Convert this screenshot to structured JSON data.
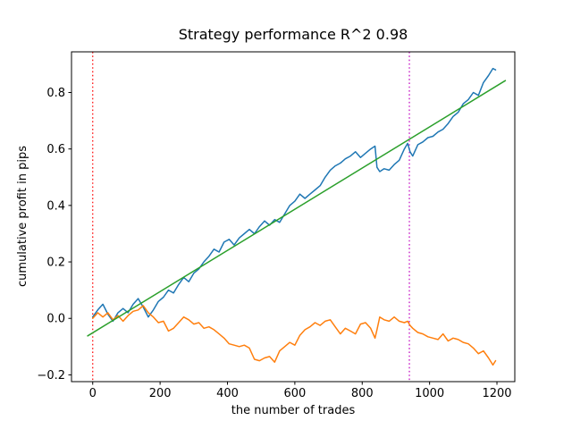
{
  "figure": {
    "background": "#ffffff",
    "spine_color": "#000000"
  },
  "chart_data": {
    "type": "line",
    "title": "Strategy performance R^2 0.98",
    "xlabel": "the number of trades",
    "ylabel": "cumulative profit in pips",
    "xlim": [
      -63,
      1253
    ],
    "ylim": [
      -0.224,
      0.944
    ],
    "xticks": [
      0,
      200,
      400,
      600,
      800,
      1000,
      1200
    ],
    "yticks": [
      -0.2,
      0.0,
      0.2,
      0.4,
      0.6,
      0.8
    ],
    "grid": false,
    "legend": null,
    "series": [
      {
        "name": "cumulative-profit-strategy",
        "color": "#1f77b4",
        "x": [
          0,
          15,
          30,
          45,
          60,
          75,
          90,
          105,
          120,
          135,
          150,
          165,
          180,
          195,
          210,
          225,
          240,
          255,
          270,
          285,
          300,
          315,
          330,
          345,
          360,
          375,
          390,
          405,
          420,
          435,
          450,
          465,
          480,
          495,
          510,
          525,
          540,
          555,
          570,
          585,
          600,
          615,
          630,
          645,
          660,
          675,
          690,
          705,
          720,
          735,
          750,
          765,
          780,
          795,
          810,
          825,
          838,
          844,
          852,
          865,
          880,
          895,
          910,
          925,
          935,
          942,
          950,
          965,
          980,
          995,
          1010,
          1025,
          1040,
          1055,
          1070,
          1085,
          1100,
          1115,
          1130,
          1145,
          1160,
          1175,
          1188,
          1196
        ],
        "y": [
          0.005,
          0.03,
          0.05,
          0.015,
          -0.01,
          0.02,
          0.035,
          0.02,
          0.05,
          0.07,
          0.04,
          0.005,
          0.03,
          0.06,
          0.075,
          0.1,
          0.09,
          0.12,
          0.145,
          0.13,
          0.16,
          0.175,
          0.2,
          0.22,
          0.245,
          0.235,
          0.27,
          0.28,
          0.26,
          0.285,
          0.3,
          0.315,
          0.3,
          0.325,
          0.345,
          0.33,
          0.35,
          0.34,
          0.37,
          0.4,
          0.415,
          0.44,
          0.425,
          0.44,
          0.455,
          0.47,
          0.5,
          0.525,
          0.54,
          0.55,
          0.565,
          0.575,
          0.59,
          0.57,
          0.585,
          0.6,
          0.61,
          0.535,
          0.52,
          0.53,
          0.525,
          0.545,
          0.56,
          0.6,
          0.62,
          0.59,
          0.575,
          0.615,
          0.625,
          0.64,
          0.645,
          0.66,
          0.67,
          0.69,
          0.715,
          0.73,
          0.76,
          0.775,
          0.8,
          0.79,
          0.835,
          0.86,
          0.885,
          0.88
        ]
      },
      {
        "name": "cumulative-profit-benchmark",
        "color": "#ff7f0e",
        "x": [
          0,
          15,
          30,
          45,
          60,
          75,
          90,
          105,
          120,
          135,
          150,
          165,
          180,
          195,
          210,
          225,
          240,
          255,
          270,
          285,
          300,
          315,
          330,
          345,
          360,
          375,
          390,
          405,
          420,
          435,
          450,
          465,
          480,
          495,
          510,
          525,
          540,
          555,
          570,
          585,
          600,
          615,
          630,
          645,
          660,
          675,
          690,
          705,
          720,
          735,
          750,
          765,
          780,
          795,
          810,
          825,
          838,
          844,
          852,
          865,
          880,
          895,
          910,
          925,
          935,
          942,
          950,
          965,
          980,
          995,
          1010,
          1025,
          1040,
          1055,
          1070,
          1085,
          1100,
          1115,
          1130,
          1145,
          1160,
          1175,
          1188,
          1196
        ],
        "y": [
          0.0,
          0.02,
          0.005,
          0.02,
          -0.005,
          0.01,
          -0.01,
          0.01,
          0.025,
          0.03,
          0.045,
          0.02,
          0.005,
          -0.015,
          -0.01,
          -0.045,
          -0.035,
          -0.015,
          0.005,
          -0.005,
          -0.02,
          -0.015,
          -0.035,
          -0.03,
          -0.04,
          -0.055,
          -0.07,
          -0.09,
          -0.095,
          -0.1,
          -0.095,
          -0.105,
          -0.145,
          -0.15,
          -0.14,
          -0.135,
          -0.155,
          -0.115,
          -0.1,
          -0.085,
          -0.095,
          -0.06,
          -0.04,
          -0.03,
          -0.015,
          -0.025,
          -0.01,
          -0.005,
          -0.03,
          -0.055,
          -0.035,
          -0.045,
          -0.055,
          -0.02,
          -0.015,
          -0.035,
          -0.07,
          -0.04,
          0.005,
          -0.005,
          -0.01,
          0.005,
          -0.01,
          -0.015,
          -0.01,
          -0.025,
          -0.035,
          -0.05,
          -0.055,
          -0.065,
          -0.07,
          -0.075,
          -0.055,
          -0.08,
          -0.07,
          -0.075,
          -0.085,
          -0.09,
          -0.105,
          -0.125,
          -0.115,
          -0.14,
          -0.165,
          -0.15
        ]
      },
      {
        "name": "linear-regression-fit",
        "color": "#2ca02c",
        "x": [
          -15,
          1225
        ],
        "y": [
          -0.062,
          0.842
        ]
      }
    ],
    "vlines": [
      {
        "name": "start-marker",
        "x": 0,
        "color": "#ff0000",
        "style": "dotted"
      },
      {
        "name": "split-marker",
        "x": 940,
        "color": "#bf00bf",
        "style": "dotted"
      }
    ]
  }
}
